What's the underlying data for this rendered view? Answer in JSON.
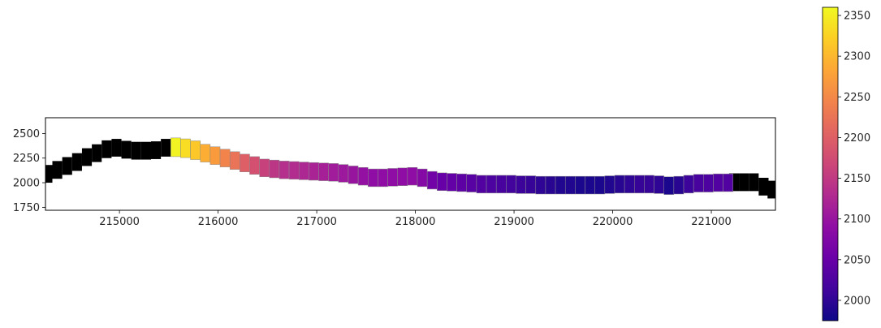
{
  "chart_data": {
    "type": "heatmap",
    "title": "",
    "xlabel": "",
    "ylabel": "",
    "xlim": [
      214250,
      221650
    ],
    "ylim": [
      1720,
      2660
    ],
    "xticks": [
      215000,
      216000,
      217000,
      218000,
      219000,
      220000,
      221000
    ],
    "xtick_labels": [
      "215000",
      "216000",
      "217000",
      "218000",
      "219000",
      "220000",
      "221000"
    ],
    "yticks": [
      1750,
      2000,
      2250,
      2500
    ],
    "ytick_labels": [
      "1750",
      "2000",
      "2250",
      "2500"
    ],
    "segment_width": 100,
    "masked_color": "#000000",
    "masked_segments": {
      "x": [
        214270,
        214370,
        214470,
        214570,
        214670,
        214770,
        214870,
        214970,
        215070,
        215170,
        215270,
        215370,
        215470,
        221230,
        221330,
        221430,
        221530,
        221620
      ],
      "y": [
        2000,
        2040,
        2080,
        2120,
        2170,
        2210,
        2250,
        2265,
        2245,
        2235,
        2235,
        2240,
        2265,
        1915,
        1915,
        1915,
        1870,
        1840
      ],
      "half_width": [
        90,
        90,
        90,
        90,
        90,
        90,
        90,
        90,
        90,
        90,
        90,
        90,
        90,
        90,
        90,
        90,
        90,
        90
      ]
    },
    "colored_segments": {
      "x": [
        215570,
        215670,
        215770,
        215870,
        215970,
        216070,
        216170,
        216270,
        216370,
        216470,
        216570,
        216670,
        216770,
        216870,
        216970,
        217070,
        217170,
        217270,
        217370,
        217470,
        217570,
        217670,
        217770,
        217870,
        217970,
        218070,
        218170,
        218270,
        218370,
        218470,
        218570,
        218670,
        218770,
        218870,
        218970,
        219070,
        219170,
        219270,
        219370,
        219470,
        219570,
        219670,
        219770,
        219870,
        219970,
        220070,
        220170,
        220270,
        220370,
        220470,
        220570,
        220670,
        220770,
        220870,
        220970,
        221070,
        221170
      ],
      "y": [
        2265,
        2255,
        2235,
        2210,
        2185,
        2160,
        2135,
        2110,
        2085,
        2060,
        2050,
        2040,
        2035,
        2030,
        2025,
        2020,
        2015,
        2005,
        1990,
        1975,
        1960,
        1960,
        1965,
        1970,
        1975,
        1960,
        1935,
        1920,
        1915,
        1910,
        1905,
        1895,
        1895,
        1895,
        1895,
        1890,
        1890,
        1885,
        1885,
        1885,
        1885,
        1885,
        1885,
        1885,
        1890,
        1895,
        1895,
        1895,
        1895,
        1890,
        1880,
        1885,
        1895,
        1905,
        1905,
        1910,
        1910
      ],
      "half_width": [
        95,
        95,
        95,
        90,
        90,
        90,
        90,
        90,
        90,
        90,
        90,
        90,
        90,
        90,
        90,
        90,
        90,
        90,
        90,
        90,
        90,
        90,
        90,
        90,
        90,
        90,
        90,
        90,
        90,
        90,
        90,
        90,
        90,
        90,
        90,
        90,
        90,
        90,
        90,
        90,
        90,
        90,
        90,
        90,
        90,
        90,
        90,
        90,
        90,
        90,
        90,
        90,
        90,
        90,
        90,
        90,
        90
      ],
      "values": [
        2355,
        2335,
        2315,
        2290,
        2270,
        2245,
        2225,
        2200,
        2180,
        2160,
        2145,
        2135,
        2130,
        2125,
        2120,
        2115,
        2110,
        2105,
        2100,
        2095,
        2090,
        2090,
        2090,
        2090,
        2090,
        2080,
        2060,
        2050,
        2045,
        2040,
        2035,
        2030,
        2025,
        2020,
        2015,
        2010,
        2005,
        2000,
        1995,
        1990,
        1990,
        1985,
        1985,
        1985,
        1990,
        1995,
        2000,
        2005,
        2005,
        2000,
        1985,
        1995,
        2010,
        2020,
        2025,
        2030,
        2030
      ]
    },
    "colorbar": {
      "colormap": "plasma",
      "range": [
        1975,
        2360
      ],
      "ticks": [
        2000,
        2050,
        2100,
        2150,
        2200,
        2250,
        2300,
        2350
      ],
      "tick_labels": [
        "2000",
        "2050",
        "2100",
        "2150",
        "2200",
        "2250",
        "2300",
        "2350"
      ]
    }
  }
}
